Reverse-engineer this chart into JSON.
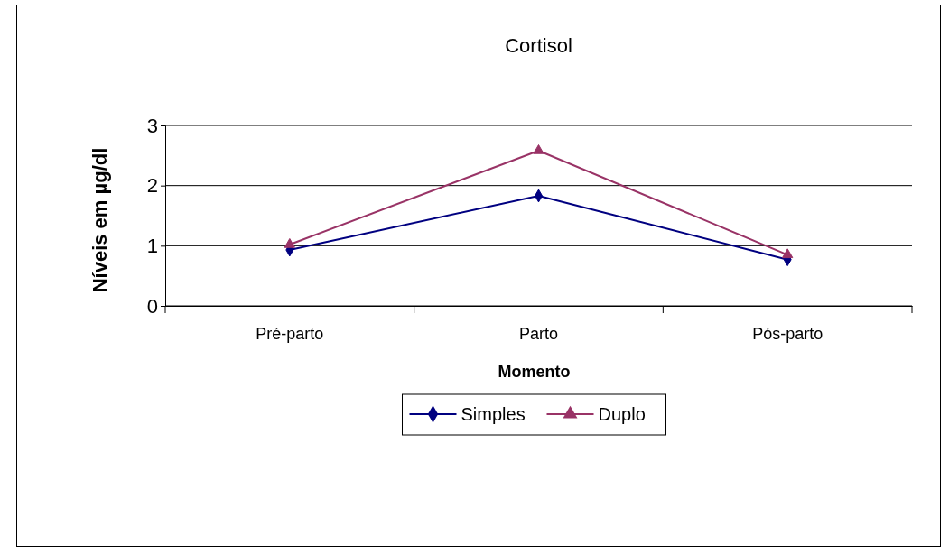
{
  "chart_data": {
    "type": "line",
    "title": "Cortisol",
    "xlabel": "Momento",
    "ylabel": "Níveis em µg/dl",
    "categories": [
      "Pré-parto",
      "Parto",
      "Pós-parto"
    ],
    "series": [
      {
        "name": "Simples",
        "color": "#000080",
        "marker": "diamond",
        "values": [
          0.93,
          1.83,
          0.77
        ]
      },
      {
        "name": "Duplo",
        "color": "#993366",
        "marker": "triangle",
        "values": [
          1.02,
          2.58,
          0.85
        ]
      }
    ],
    "ylim": [
      0,
      3
    ],
    "yticks": [
      0,
      1,
      2,
      3
    ],
    "grid": "y",
    "legend": "bottom"
  }
}
